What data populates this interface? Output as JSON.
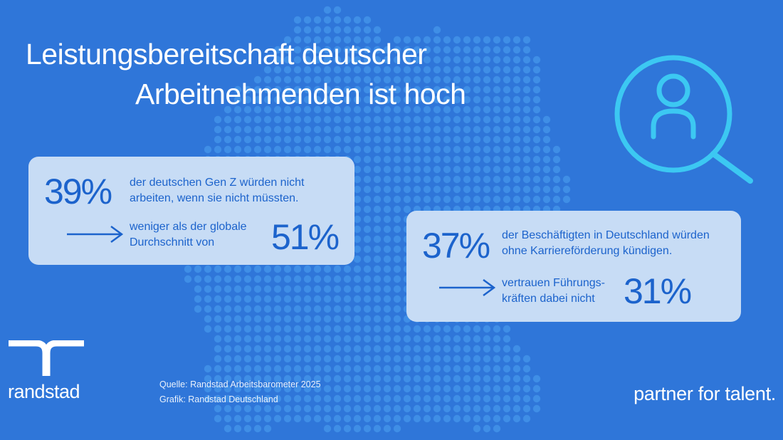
{
  "title": {
    "line1": "Leistungsbereitschaft deutscher",
    "line2": "Arbeitnehmenden ist hoch"
  },
  "cards": [
    {
      "main_percent": "39%",
      "main_text": "der  deutschen Gen Z würden nicht arbeiten, wenn sie nicht müssten.",
      "compare_text": "weniger als der globale Durchschnitt von",
      "compare_percent": "51%"
    },
    {
      "main_percent": "37%",
      "main_text": "der Beschäftigten in Deutschland würden ohne Karriereförderung kündigen.",
      "compare_text": "vertrauen Führungs-kräften dabei nicht",
      "compare_percent": "31%"
    }
  ],
  "footer": {
    "brand": "randstad",
    "source_line1": "Quelle: Randstad Arbeitsbarometer 2025",
    "source_line2": "Grafik: Randstad Deutschland",
    "tagline": "partner for talent."
  },
  "icons": {
    "hero": "search-person-icon",
    "arrow": "arrow-right-icon",
    "logo": "randstad-logo-icon"
  },
  "colors": {
    "background": "#2f76d9",
    "dot": "#3f8ee6",
    "card_bg": "#c7dcf5",
    "card_text": "#1c63cc",
    "icon": "#3cc8f2"
  }
}
